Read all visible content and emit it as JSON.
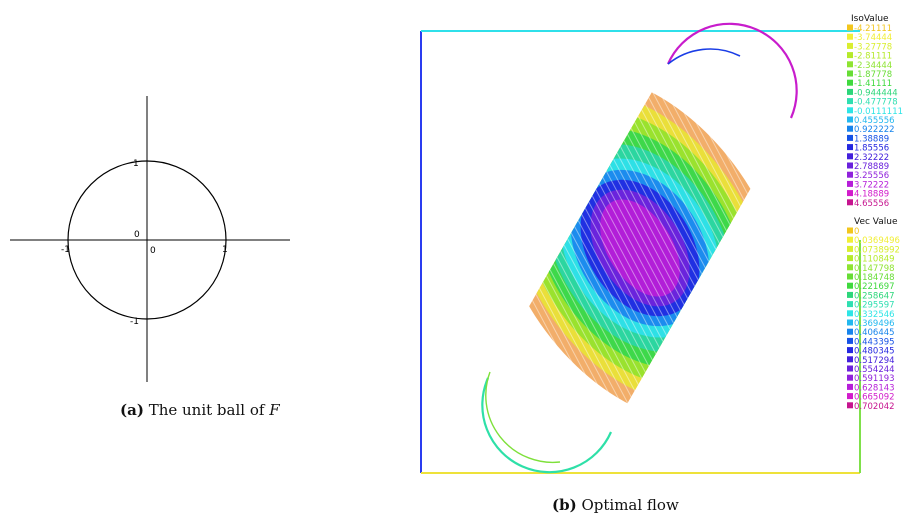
{
  "figure_a": {
    "tick_labels": {
      "y_top": "1",
      "y_bottom": "-1",
      "x_left": "-1",
      "x_right": "1",
      "origin_y": "0",
      "origin_x": "0"
    },
    "caption": {
      "tag": "(a)",
      "text": "The unit ball of ",
      "math": "F"
    }
  },
  "figure_b": {
    "caption": {
      "tag": "(b)",
      "text": "Optimal flow"
    },
    "iso_legend": {
      "title": "IsoValue",
      "entries": [
        {
          "label": "-4.21111",
          "color": "#f2c61d"
        },
        {
          "label": "-3.74444",
          "color": "#f1ef36"
        },
        {
          "label": "-3.27778",
          "color": "#d9ee2f"
        },
        {
          "label": "-2.81111",
          "color": "#b5ea2a"
        },
        {
          "label": "-2.34444",
          "color": "#8ee431"
        },
        {
          "label": "-1.87778",
          "color": "#67dd35"
        },
        {
          "label": "-1.41111",
          "color": "#3fd93e"
        },
        {
          "label": "-0.944444",
          "color": "#2cd67a"
        },
        {
          "label": "-0.477778",
          "color": "#2fdfb1"
        },
        {
          "label": "-0.0111111",
          "color": "#2ee5e6"
        },
        {
          "label": "0.455556",
          "color": "#23b8ef"
        },
        {
          "label": "0.922222",
          "color": "#1784ec"
        },
        {
          "label": "1.38889",
          "color": "#1652e6"
        },
        {
          "label": "1.85556",
          "color": "#2528e0"
        },
        {
          "label": "2.32222",
          "color": "#4320dc"
        },
        {
          "label": "2.78889",
          "color": "#6a21dc"
        },
        {
          "label": "3.25556",
          "color": "#9022dc"
        },
        {
          "label": "3.72222",
          "color": "#b61ed9"
        },
        {
          "label": "4.18889",
          "color": "#d21ccb"
        },
        {
          "label": "4.65556",
          "color": "#c6148f"
        }
      ]
    },
    "vec_legend": {
      "title": "Vec Value",
      "entries": [
        {
          "label": "0",
          "color": "#f2c61d"
        },
        {
          "label": "0.0369496",
          "color": "#f1ef36"
        },
        {
          "label": "0.0738992",
          "color": "#d9ee2f"
        },
        {
          "label": "0.110849",
          "color": "#b5ea2a"
        },
        {
          "label": "0.147798",
          "color": "#8ee431"
        },
        {
          "label": "0.184748",
          "color": "#67dd35"
        },
        {
          "label": "0.221697",
          "color": "#3fd93e"
        },
        {
          "label": "0.258647",
          "color": "#2cd67a"
        },
        {
          "label": "0.295597",
          "color": "#2fdfb1"
        },
        {
          "label": "0.332546",
          "color": "#2ee5e6"
        },
        {
          "label": "0.369496",
          "color": "#23b8ef"
        },
        {
          "label": "0.406445",
          "color": "#1784ec"
        },
        {
          "label": "0.443395",
          "color": "#1652e6"
        },
        {
          "label": "0.480345",
          "color": "#2528e0"
        },
        {
          "label": "0.517294",
          "color": "#4320dc"
        },
        {
          "label": "0.554244",
          "color": "#6a21dc"
        },
        {
          "label": "0.591193",
          "color": "#9022dc"
        },
        {
          "label": "0.628143",
          "color": "#b61ed9"
        },
        {
          "label": "0.665092",
          "color": "#d21ccb"
        },
        {
          "label": "0.702042",
          "color": "#c6148f"
        }
      ]
    }
  }
}
